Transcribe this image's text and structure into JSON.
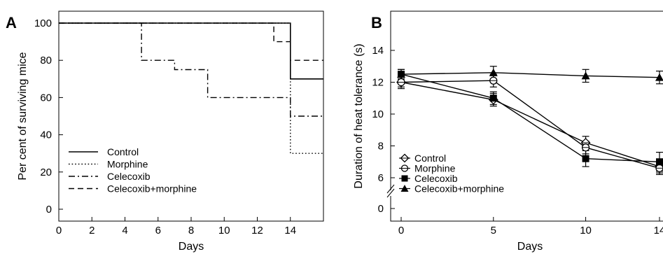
{
  "chart_data": [
    {
      "type": "line",
      "panel_label": "A",
      "xlabel": "Days",
      "ylabel": "Per cent of surviving mice",
      "xlim": [
        0,
        16
      ],
      "ylim": [
        0,
        100
      ],
      "x_ticks": [
        0,
        2,
        4,
        6,
        8,
        10,
        12,
        14
      ],
      "y_ticks": [
        0,
        20,
        40,
        60,
        80,
        100
      ],
      "step": true,
      "legend_position": "bottom-left",
      "series": [
        {
          "name": "Control",
          "style": "solid",
          "points": [
            [
              0,
              100
            ],
            [
              14,
              100
            ],
            [
              14,
              70
            ],
            [
              16,
              70
            ]
          ]
        },
        {
          "name": "Morphine",
          "style": "dotted",
          "points": [
            [
              0,
              100
            ],
            [
              14,
              100
            ],
            [
              14,
              30
            ],
            [
              16,
              30
            ]
          ]
        },
        {
          "name": "Celecoxib",
          "style": "dashdot",
          "points": [
            [
              0,
              100
            ],
            [
              5,
              100
            ],
            [
              5,
              80
            ],
            [
              7,
              80
            ],
            [
              7,
              75
            ],
            [
              9,
              75
            ],
            [
              9,
              60
            ],
            [
              14,
              60
            ],
            [
              14,
              50
            ],
            [
              16,
              50
            ]
          ]
        },
        {
          "name": "Celecoxib+morphine",
          "style": "dashed",
          "points": [
            [
              0,
              100
            ],
            [
              13,
              100
            ],
            [
              13,
              90
            ],
            [
              14,
              90
            ],
            [
              14,
              80
            ],
            [
              16,
              80
            ]
          ]
        }
      ]
    },
    {
      "type": "line",
      "panel_label": "B",
      "xlabel": "Days",
      "ylabel": "Duration of heat tolerance (s)",
      "xlim": [
        0,
        14
      ],
      "ylim": [
        0,
        14
      ],
      "axis_break": true,
      "x_ticks": [
        0,
        5,
        10,
        14
      ],
      "y_ticks": [
        0,
        6,
        8,
        10,
        12,
        14
      ],
      "legend_position": "bottom-left",
      "series": [
        {
          "name": "Control",
          "marker": "open-diamond",
          "x": [
            0,
            5,
            10,
            14
          ],
          "y": [
            12.0,
            10.9,
            8.2,
            6.7
          ],
          "err": [
            0.4,
            0.4,
            0.4,
            0.4
          ]
        },
        {
          "name": "Morphine",
          "marker": "open-circle",
          "x": [
            0,
            5,
            10,
            14
          ],
          "y": [
            12.0,
            12.1,
            7.9,
            6.6
          ],
          "err": [
            0.3,
            0.4,
            0.4,
            0.4
          ]
        },
        {
          "name": "Celecoxib",
          "marker": "filled-square",
          "x": [
            0,
            5,
            10,
            14
          ],
          "y": [
            12.5,
            11.0,
            7.2,
            7.0
          ],
          "err": [
            0.3,
            0.4,
            0.5,
            0.6
          ]
        },
        {
          "name": "Celecoxib+morphine",
          "marker": "filled-triangle",
          "x": [
            0,
            5,
            10,
            14
          ],
          "y": [
            12.5,
            12.6,
            12.4,
            12.3
          ],
          "err": [
            0.3,
            0.4,
            0.4,
            0.4
          ]
        }
      ]
    }
  ]
}
